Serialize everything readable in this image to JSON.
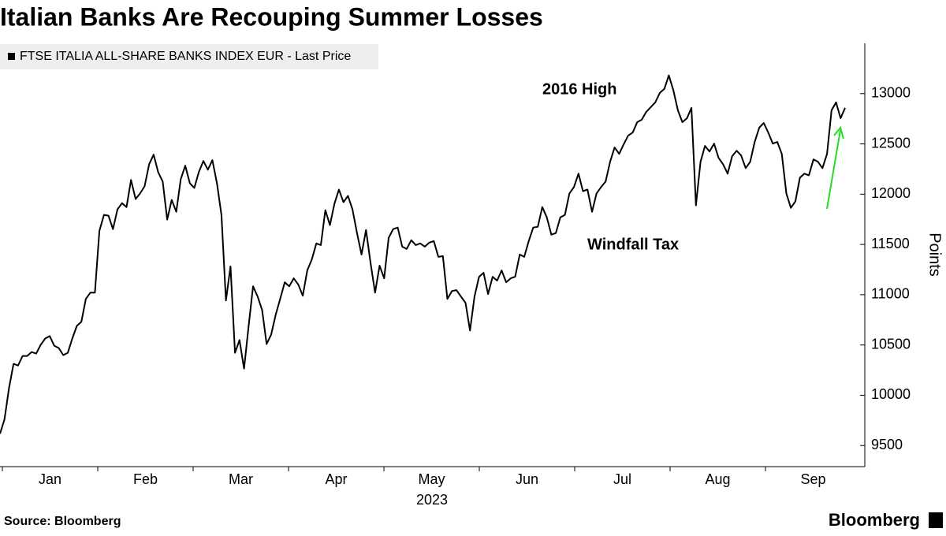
{
  "chart_data": {
    "type": "line",
    "title": "Italian Banks Are Recouping Summer Losses",
    "legend_label": "FTSE ITALIA ALL-SHARE BANKS INDEX EUR - Last Price",
    "y_axis_label": "Points",
    "x_axis_label": "2023",
    "months": [
      "Jan",
      "Feb",
      "Mar",
      "Apr",
      "May",
      "Jun",
      "Jul",
      "Aug",
      "Sep"
    ],
    "annotations": [
      "2016 High",
      "Windfall Tax"
    ],
    "source": "Source: Bloomberg",
    "brand": "Bloomberg",
    "color": "#000000",
    "ylim": [
      9290,
      13500
    ],
    "yticks": [
      9500,
      10000,
      10500,
      11000,
      11500,
      12000,
      12500,
      13000
    ],
    "grid": false,
    "values": [
      9618,
      9760,
      10075,
      10312,
      10296,
      10391,
      10391,
      10430,
      10414,
      10501,
      10564,
      10588,
      10493,
      10470,
      10399,
      10422,
      10564,
      10690,
      10730,
      10958,
      11021,
      11021,
      11636,
      11794,
      11786,
      11652,
      11849,
      11911,
      11872,
      12141,
      11952,
      12007,
      12078,
      12298,
      12393,
      12220,
      12125,
      11747,
      11943,
      11825,
      12149,
      12283,
      12109,
      12062,
      12220,
      12330,
      12243,
      12338,
      12109,
      11794,
      10943,
      11281,
      10422,
      10548,
      10265,
      10682,
      11084,
      10982,
      10848,
      10509,
      10604,
      10800,
      10958,
      11124,
      11084,
      11163,
      11100,
      10990,
      11242,
      11352,
      11510,
      11494,
      11841,
      11692,
      11904,
      12046,
      11920,
      11983,
      11849,
      11612,
      11400,
      11644,
      11313,
      11021,
      11289,
      11163,
      11565,
      11652,
      11668,
      11478,
      11455,
      11542,
      11494,
      11510,
      11478,
      11518,
      11534,
      11376,
      11384,
      10958,
      11037,
      11045,
      10982,
      10919,
      10643,
      10982,
      11179,
      11218,
      11006,
      11179,
      11140,
      11242,
      11124,
      11163,
      11179,
      11400,
      11376,
      11534,
      11668,
      11676,
      11872,
      11770,
      11597,
      11613,
      11770,
      11794,
      12007,
      12070,
      12204,
      12030,
      12046,
      11825,
      12007,
      12070,
      12125,
      12322,
      12464,
      12401,
      12495,
      12582,
      12613,
      12716,
      12740,
      12819,
      12866,
      12913,
      13008,
      13047,
      13181,
      13032,
      12834,
      12716,
      12755,
      12858,
      11888,
      12322,
      12480,
      12424,
      12503,
      12361,
      12298,
      12204,
      12377,
      12432,
      12385,
      12259,
      12322,
      12519,
      12661,
      12708,
      12613,
      12503,
      12519,
      12401,
      12007,
      11864,
      11927,
      12164,
      12204,
      12188,
      12346,
      12322,
      12259,
      12401,
      12834,
      12913,
      12755,
      12858
    ]
  }
}
